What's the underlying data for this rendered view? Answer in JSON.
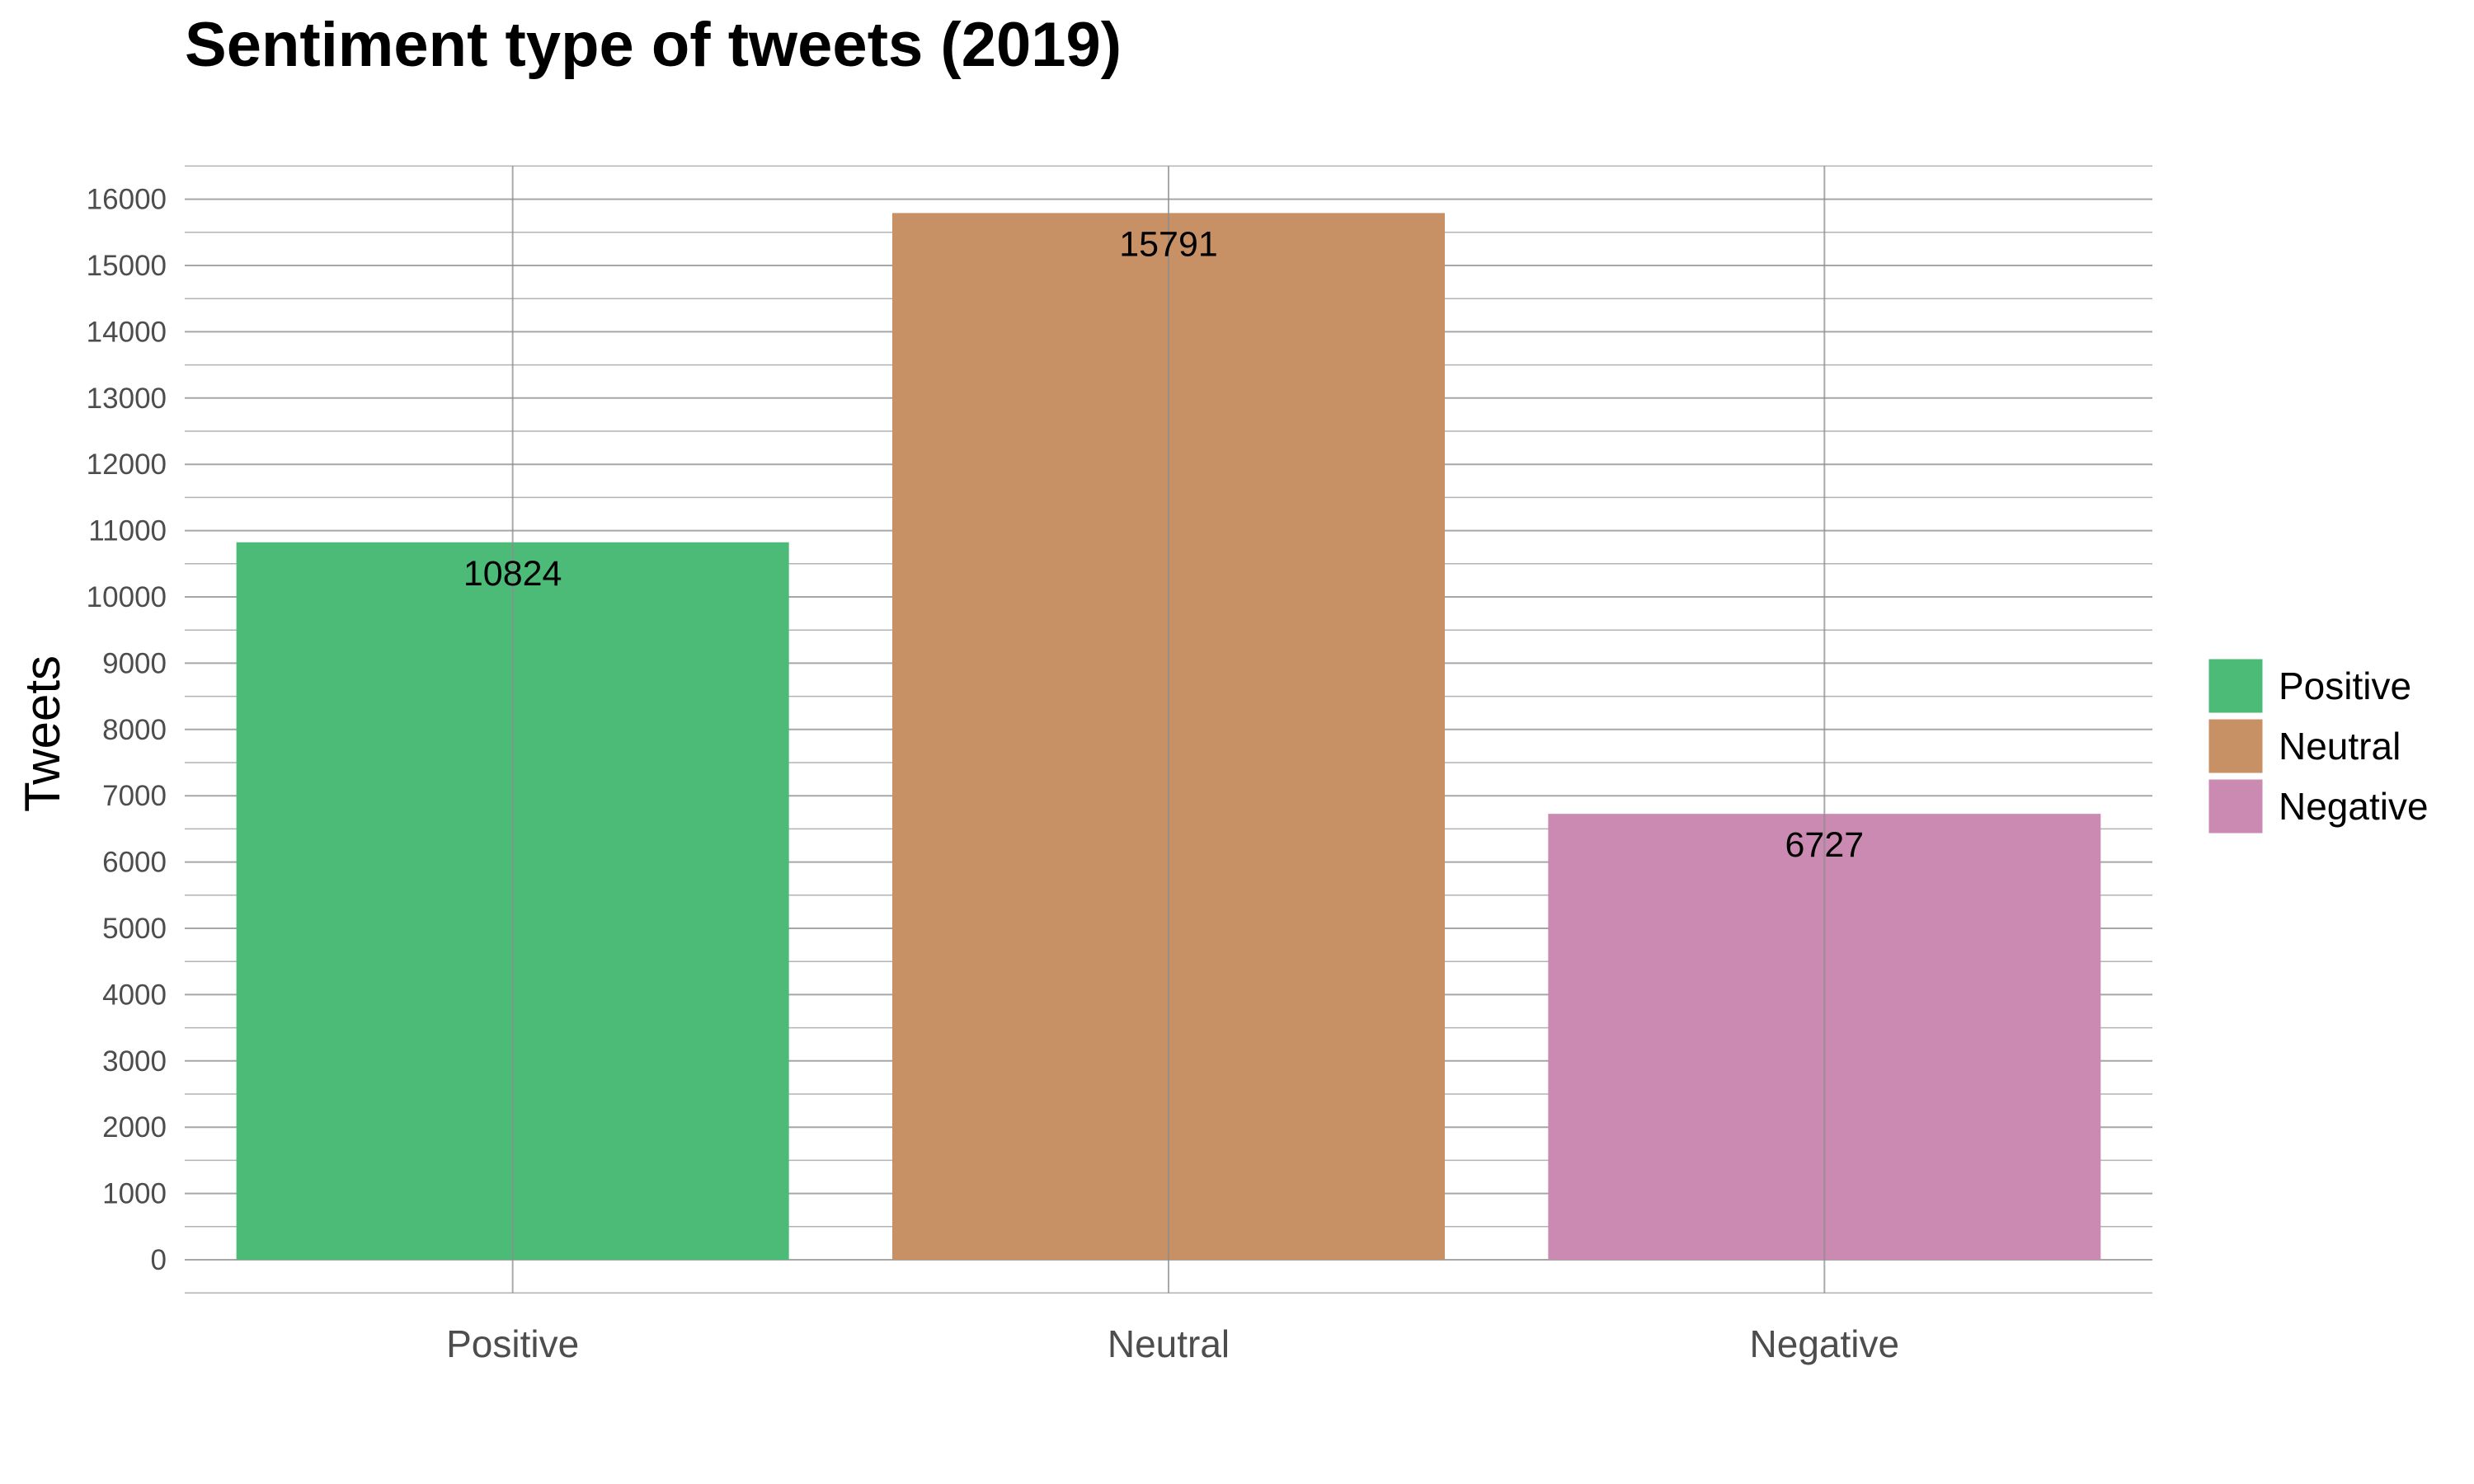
{
  "chart_data": {
    "type": "bar",
    "title": "Sentiment type of tweets (2019)",
    "xlabel": "",
    "ylabel": "Tweets",
    "categories": [
      "Positive",
      "Neutral",
      "Negative"
    ],
    "values": [
      10824,
      15791,
      6727
    ],
    "data_labels": [
      "10824",
      "15791",
      "6727"
    ],
    "colors": [
      "#4cbb77",
      "#c89065",
      "#cb8ab1"
    ],
    "ylim": [
      -500,
      16500
    ],
    "yticks": [
      0,
      1000,
      2000,
      3000,
      4000,
      5000,
      6000,
      7000,
      8000,
      9000,
      10000,
      11000,
      12000,
      13000,
      14000,
      15000,
      16000
    ],
    "ytick_labels": [
      "0",
      "1000",
      "2000",
      "3000",
      "4000",
      "5000",
      "6000",
      "7000",
      "8000",
      "9000",
      "10000",
      "11000",
      "12000",
      "13000",
      "14000",
      "15000",
      "16000"
    ],
    "grid": true,
    "legend": {
      "position": "right",
      "entries": [
        "Positive",
        "Neutral",
        "Negative"
      ]
    }
  }
}
